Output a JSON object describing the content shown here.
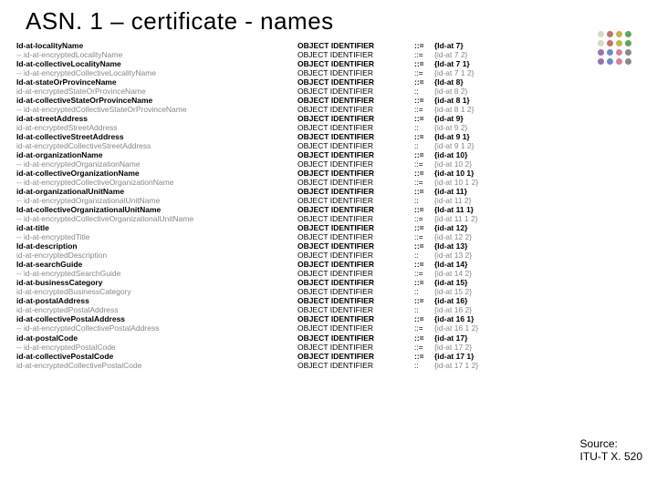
{
  "title": "ASN. 1 – certificate - names",
  "dot_colors": [
    "#d8d8c8",
    "#c86f6f",
    "#c8b24a",
    "#5aa85a",
    "#d8d8c8",
    "#c86f6f",
    "#c8b24a",
    "#5aa85a",
    "#9d6fb0",
    "#6f8ac8",
    "#d87fa0",
    "#888888",
    "#9d6fb0",
    "#6f8ac8",
    "#d87fa0",
    "#888888"
  ],
  "rows": [
    {
      "c1": "Id-at-localityName",
      "c2": "OBJECT IDENTIFIER",
      "c3": "::=",
      "c4": "{Id-at 7}",
      "bold": true
    },
    {
      "c1": "--  id-at-encryptedLocalityName",
      "c2": "OBJECT IDENTIFIER",
      "c3": "::=",
      "c4": "{id-at 7 2}",
      "bold": false,
      "gray": true
    },
    {
      "c1": "Id-at-collectiveLocalityName",
      "c2": "OBJECT IDENTIFIER",
      "c3": "::=",
      "c4": "{Id-at 7 1}",
      "bold": true
    },
    {
      "c1": "--  id-at-encryptedCollectiveLocalityName",
      "c2": "OBJECT IDENTIFIER",
      "c3": "::=",
      "c4": "{id-at 7 1 2}",
      "bold": false,
      "gray": true
    },
    {
      "c1": "Id-at-stateOrProvinceName",
      "c2": "OBJECT IDENTIFIER",
      "c3": "::=",
      "c4": "{Id-at 8}",
      "bold": true
    },
    {
      "c1": "    id-at-encryptedStateOrProvinceName",
      "c2": "OBJECT IDENTIFIER",
      "c3": "::",
      "c4": "{id-at 8 2}",
      "bold": false,
      "gray": true
    },
    {
      "c1": "id-at-collectiveStateOrProvinceName",
      "c2": "OBJECT IDENTIFIER",
      "c3": "::=",
      "c4": "{id-at 8 1}",
      "bold": true
    },
    {
      "c1": "--  id-at-encryptedCollectiveStateOrProvinceName",
      "c2": "OBJECT IDENTIFIER",
      "c3": "::=",
      "c4": "{id-at 8 1 2}",
      "bold": false,
      "gray": true
    },
    {
      "c1": "id-at-streetAddress",
      "c2": "OBJECT IDENTIFIER",
      "c3": "::=",
      "c4": "{id-at 9}",
      "bold": true
    },
    {
      "c1": "    id-at-encryptedStreetAddress",
      "c2": "OBJECT IDENTIFIER",
      "c3": "::",
      "c4": "{id-at 9 2}",
      "bold": false,
      "gray": true
    },
    {
      "c1": "Id-at-collectiveStreetAddress",
      "c2": "OBJECT IDENTIFIER",
      "c3": "::=",
      "c4": "{Id-at 9 1}",
      "bold": true
    },
    {
      "c1": "    id-at-encryptedCollectiveStreetAddress",
      "c2": "OBJECT IDENTIFIER",
      "c3": "::",
      "c4": "{id-at 9 1 2}",
      "bold": false,
      "gray": true
    },
    {
      "c1": "id-at-organizationName",
      "c2": "OBJECT IDENTIFIER",
      "c3": "::=",
      "c4": "{id-at 10}",
      "bold": true
    },
    {
      "c1": "--  id-at-encryptedOrganizationName",
      "c2": "OBJECT IDENTIFIER",
      "c3": "::=",
      "c4": "{id-at 10 2}",
      "bold": false,
      "gray": true
    },
    {
      "c1": "id-at-collectiveOrganizationName",
      "c2": "OBJECT IDENTIFIER",
      "c3": "::=",
      "c4": "{id-at 10 1}",
      "bold": true
    },
    {
      "c1": "--  id-at-encryptedCollectiveOrganizationName",
      "c2": "OBJECT IDENTIFIER",
      "c3": "::=",
      "c4": "{id-at 10 1 2}",
      "bold": false,
      "gray": true
    },
    {
      "c1": "id-at-organizationalUnitName",
      "c2": "OBJECT IDENTIFIER",
      "c3": "::=",
      "c4": "{id-at 11}",
      "bold": true
    },
    {
      "c1": "--  id-at-encryptedOrganizationalUnitName",
      "c2": "OBJECT IDENTIFIER",
      "c3": "::",
      "c4": "{id-at 11 2}",
      "bold": false,
      "gray": true
    },
    {
      "c1": "Id-at-collectiveOrganizationalUnitName",
      "c2": "OBJECT IDENTIFIER",
      "c3": "::=",
      "c4": "{Id-at 11 1}",
      "bold": true
    },
    {
      "c1": "--  id-at-encryptedCollectiveOrganizationalUnitName",
      "c2": "OBJECT IDENTIFIER",
      "c3": "::=",
      "c4": "{id-at 11 1 2}",
      "bold": false,
      "gray": true
    },
    {
      "c1": "id-at-title",
      "c2": "OBJECT IDENTIFIER",
      "c3": "::=",
      "c4": "{id-at 12}",
      "bold": true
    },
    {
      "c1": "--  id-at-encryptedTitle",
      "c2": "OBJECT IDENTIFIER",
      "c3": "::=",
      "c4": "{id-at 12 2}",
      "bold": false,
      "gray": true
    },
    {
      "c1": "Id-at-description",
      "c2": "OBJECT IDENTIFIER",
      "c3": "::=",
      "c4": "{Id-at 13}",
      "bold": true
    },
    {
      "c1": "    id-at-encryptedDescription",
      "c2": "OBJECT IDENTIFIER",
      "c3": "::",
      "c4": "{id-at 13 2}",
      "bold": false,
      "gray": true
    },
    {
      "c1": "Id-at-searchGuide",
      "c2": "OBJECT IDENTIFIER",
      "c3": "::=",
      "c4": "{Id-at 14}",
      "bold": true
    },
    {
      "c1": "--  id-at-encryptedSearchGuide",
      "c2": "OBJECT IDENTIFIER",
      "c3": "::=",
      "c4": "{id-at 14 2}",
      "bold": false,
      "gray": true
    },
    {
      "c1": "id-at-businessCategory",
      "c2": "OBJECT IDENTIFIER",
      "c3": "::=",
      "c4": "{id-at 15}",
      "bold": true
    },
    {
      "c1": "    id-at-encryptedBusinessCategory",
      "c2": "OBJECT IDENTIFIER",
      "c3": "::",
      "c4": "{id-at 15 2}",
      "bold": false,
      "gray": true
    },
    {
      "c1": "id-at-postalAddress",
      "c2": "OBJECT IDENTIFIER",
      "c3": "::=",
      "c4": "{id-at 16}",
      "bold": true
    },
    {
      "c1": "    id-at-encryptedPostalAddress",
      "c2": "OBJECT IDENTIFIER",
      "c3": "::",
      "c4": "{id-at 16 2}",
      "bold": false,
      "gray": true
    },
    {
      "c1": "id-at-collectivePostalAddress",
      "c2": "OBJECT IDENTIFIER",
      "c3": "::=",
      "c4": "{id-at 16 1}",
      "bold": true
    },
    {
      "c1": "--  id-at-encryptedCollectivePostalAddress",
      "c2": "OBJECT IDENTIFIER",
      "c3": "::=",
      "c4": "{id-at 16 1 2}",
      "bold": false,
      "gray": true
    },
    {
      "c1": "id-at-postalCode",
      "c2": "OBJECT IDENTIFIER",
      "c3": "::=",
      "c4": "{id-at 17}",
      "bold": true
    },
    {
      "c1": "--  id-at-encryptedPostalCode",
      "c2": "OBJECT IDENTIFIER",
      "c3": "::=",
      "c4": "{id-at 17 2}",
      "bold": false,
      "gray": true
    },
    {
      "c1": "id-at-collectivePostalCode",
      "c2": "OBJECT IDENTIFIER",
      "c3": "::=",
      "c4": "{id-at 17 1}",
      "bold": true
    },
    {
      "c1": "    id-at-encryptedCollectivePostalCode",
      "c2": "OBJECT IDENTIFIER",
      "c3": "::",
      "c4": "{id-at 17 1 2}",
      "bold": false,
      "gray": true
    }
  ],
  "source_label1": "Source:",
  "source_label2": "ITU-T X. 520"
}
